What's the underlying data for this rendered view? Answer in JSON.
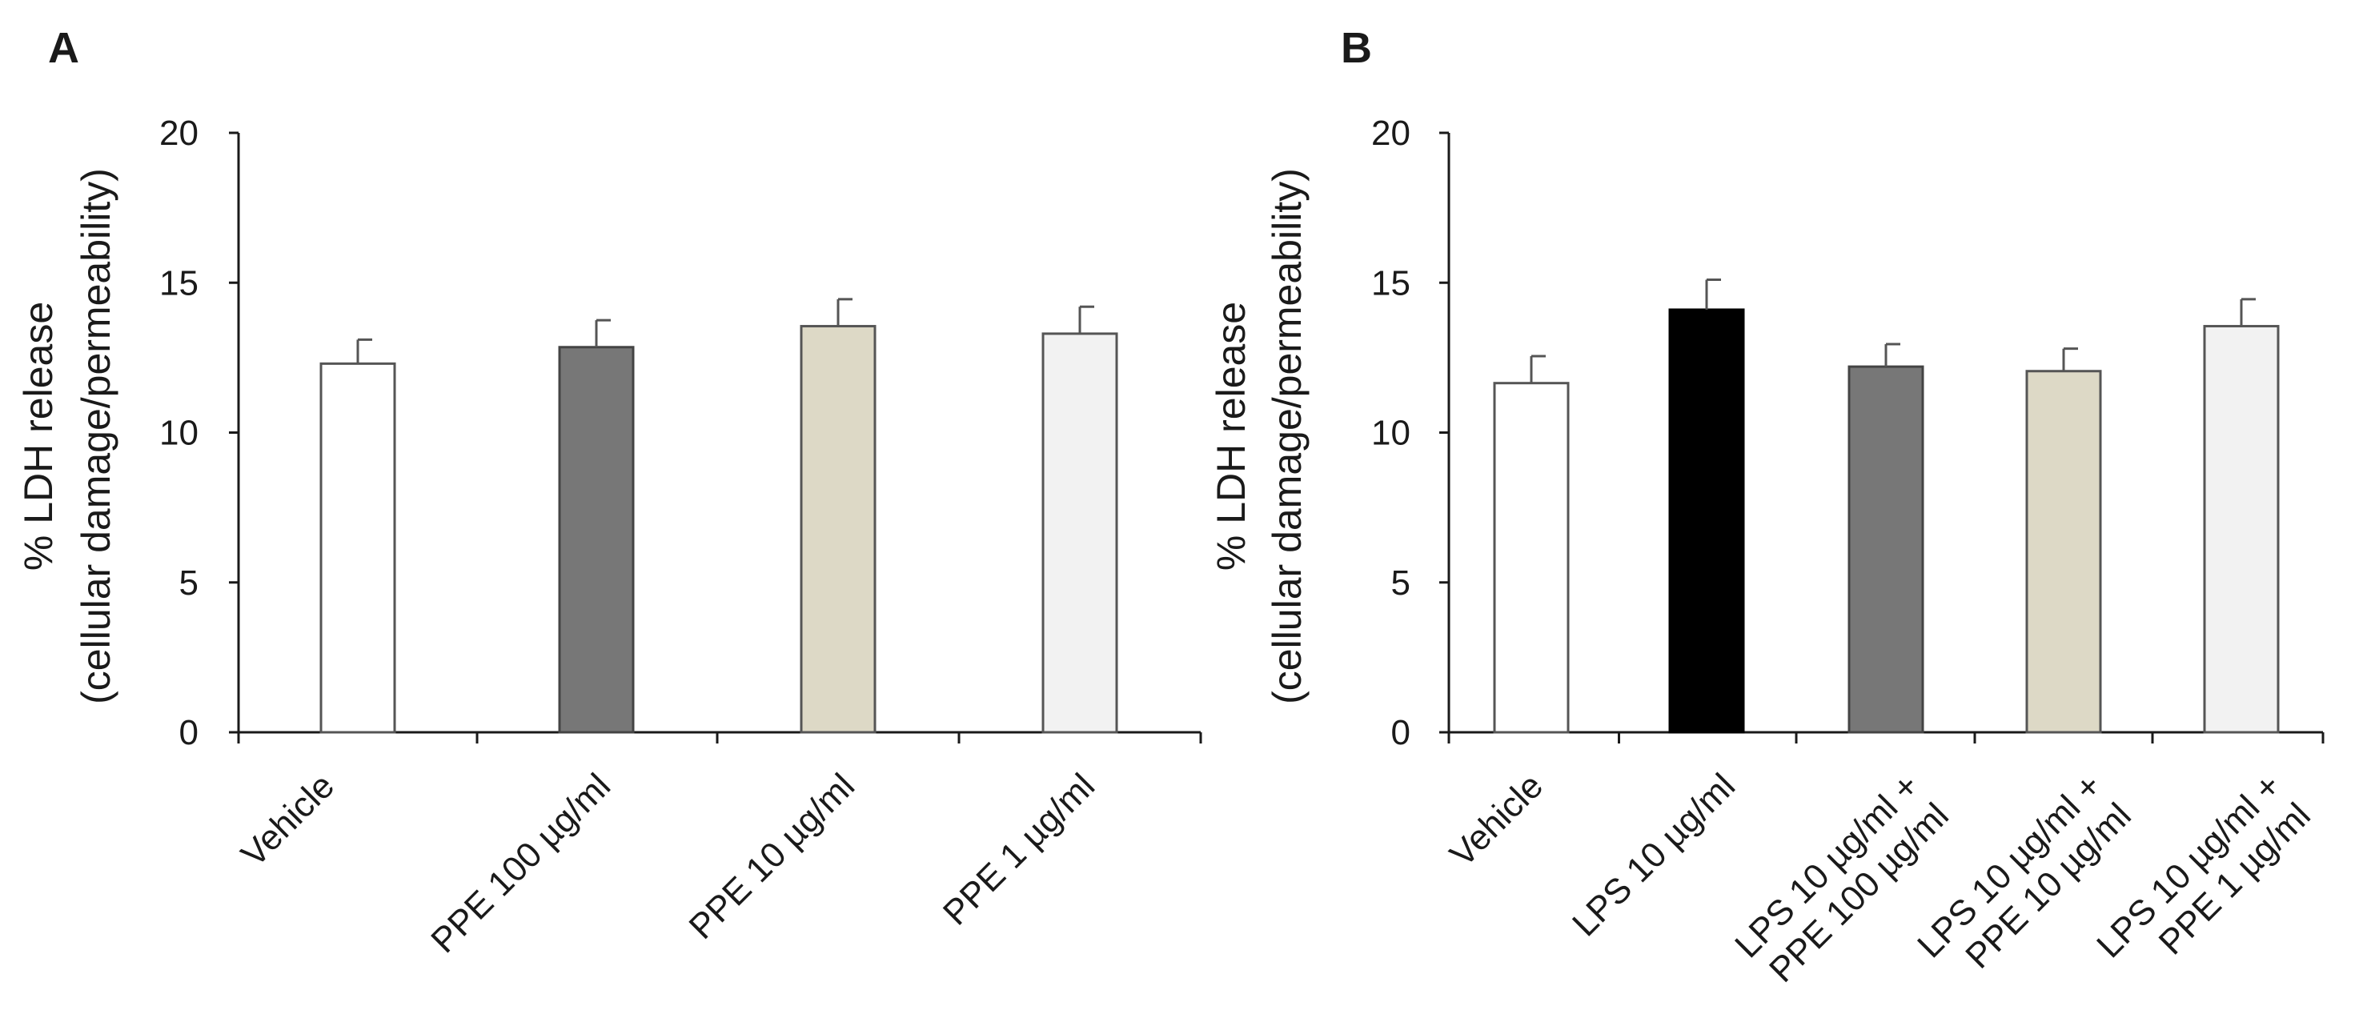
{
  "chart_data": [
    {
      "panel": "A",
      "type": "bar",
      "title": "",
      "xlabel": "",
      "ylabel": [
        "% LDH release",
        "(cellular damage/permeability)"
      ],
      "ylim": [
        0,
        20
      ],
      "yticks": [
        0,
        5,
        10,
        15,
        20
      ],
      "categories": [
        [
          "Vehicle"
        ],
        [
          "PPE 100 µg/ml"
        ],
        [
          "PPE 10 µg/ml"
        ],
        [
          "PPE 1 µg/ml"
        ]
      ],
      "values": [
        12.3,
        12.85,
        13.55,
        13.3
      ],
      "errors": [
        0.8,
        0.9,
        0.9,
        0.9
      ],
      "colors": [
        "#ffffff",
        "#777777",
        "#ddd9c6",
        "#f2f2f2"
      ]
    },
    {
      "panel": "B",
      "type": "bar",
      "title": "",
      "xlabel": "",
      "ylabel": [
        "% LDH release",
        "(cellular damage/permeability)"
      ],
      "ylim": [
        0,
        20
      ],
      "yticks": [
        0,
        5,
        10,
        15,
        20
      ],
      "categories": [
        [
          "Vehicle"
        ],
        [
          "LPS 10 µg/ml"
        ],
        [
          "LPS 10 µg/ml +",
          "PPE 100 µg/ml"
        ],
        [
          "LPS 10 µg/ml  +",
          "PPE 10 µg/ml"
        ],
        [
          "LPS 10 µg/ml  +",
          "PPE 1 µg/ml"
        ]
      ],
      "values": [
        11.65,
        14.1,
        12.2,
        12.05,
        13.55
      ],
      "errors": [
        0.9,
        1.0,
        0.75,
        0.75,
        0.9
      ],
      "colors": [
        "#ffffff",
        "#000000",
        "#777777",
        "#ddd9c6",
        "#f2f2f2"
      ]
    }
  ]
}
